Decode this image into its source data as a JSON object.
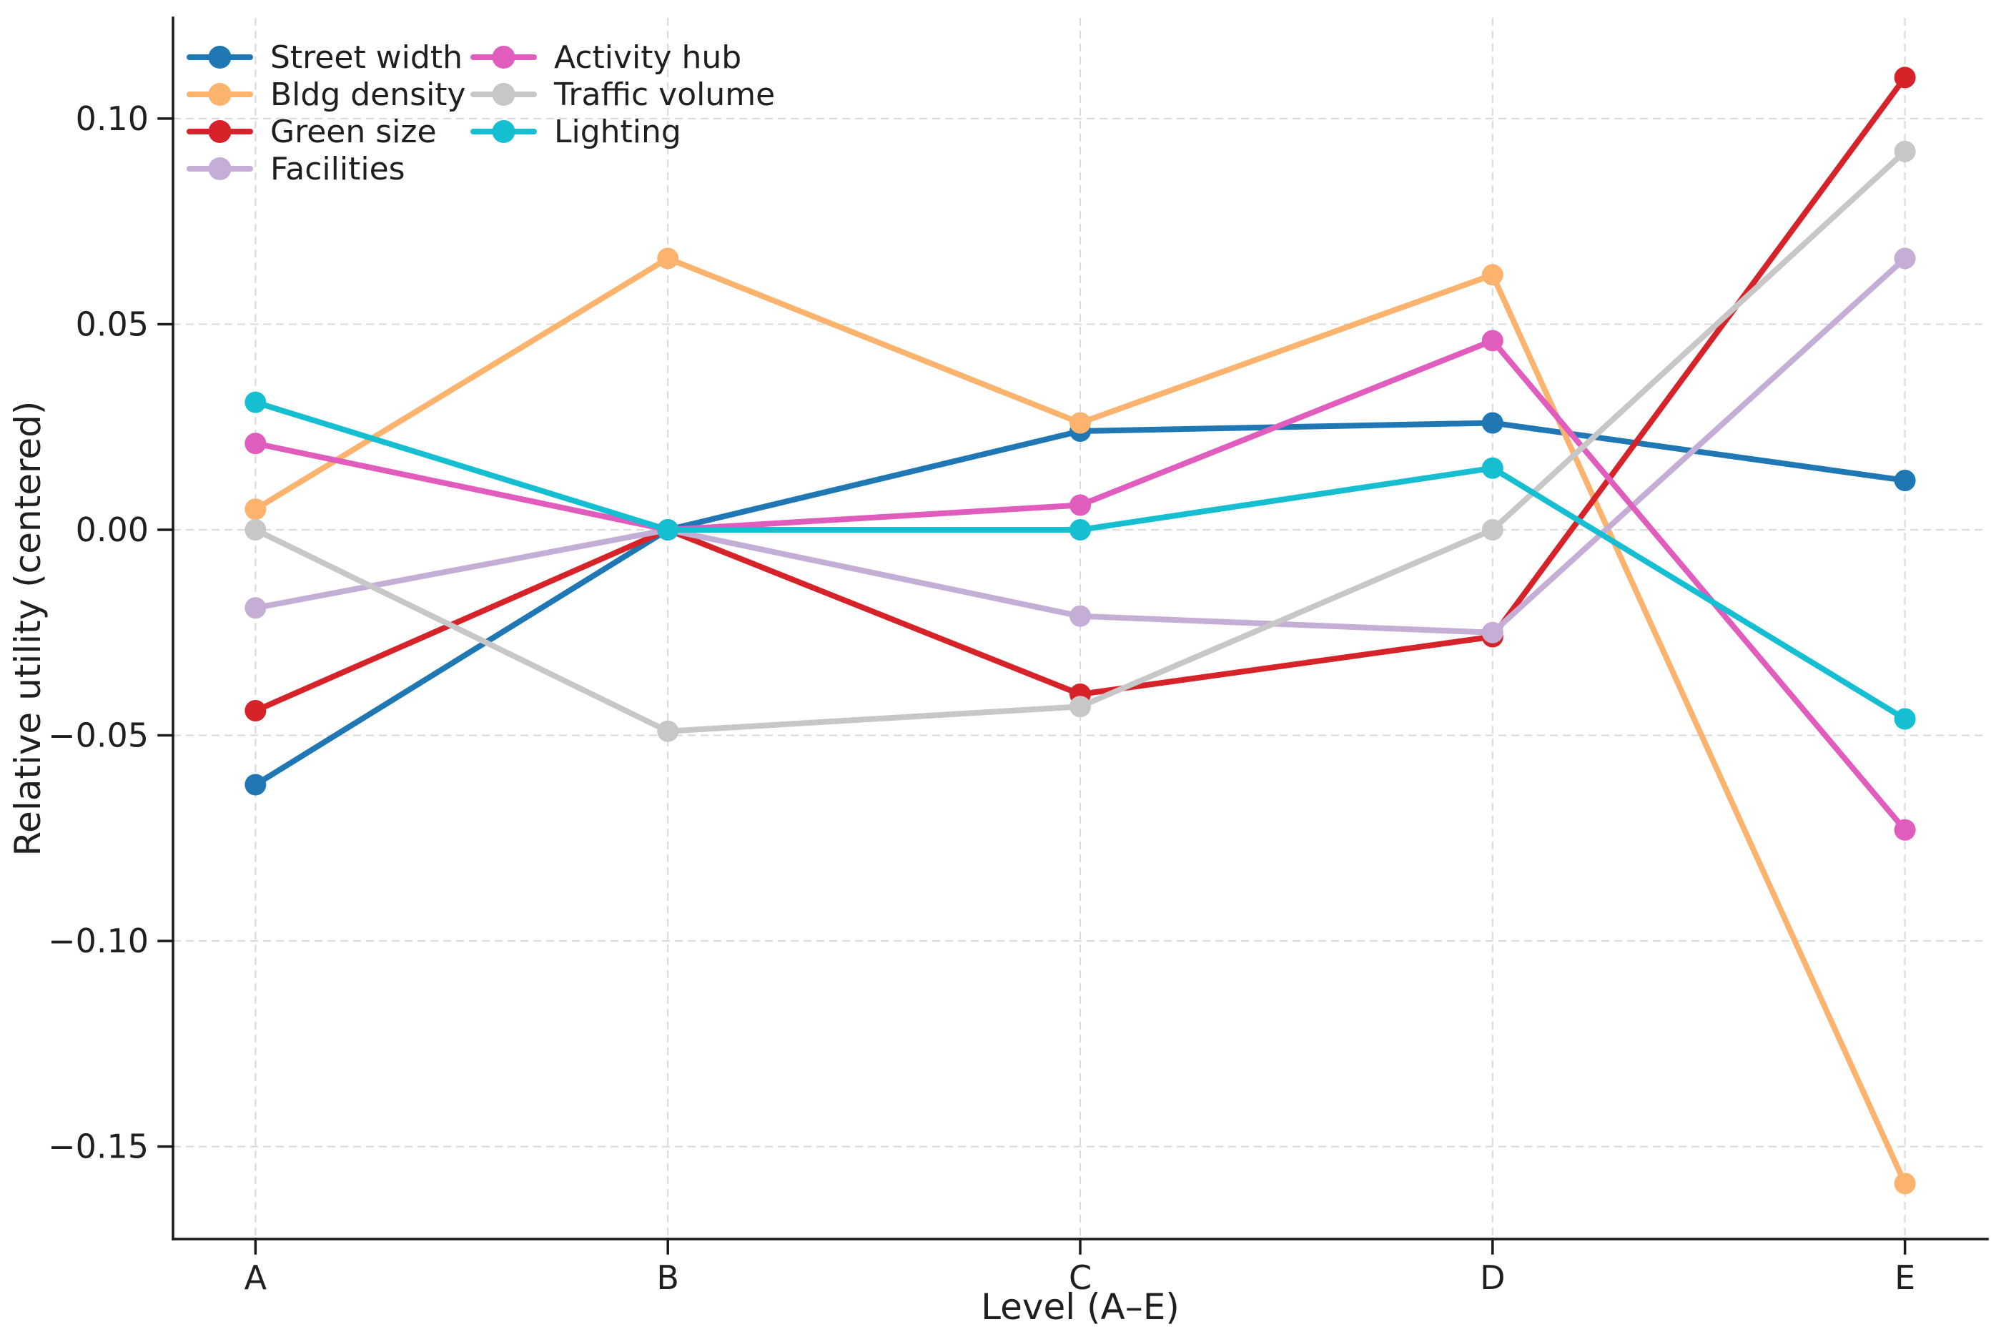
{
  "figure": {
    "background": "#ffffff",
    "grid_color": "#dcdcdc",
    "axis_color": "#1a1a1a",
    "text_color": "#1f1f1f"
  },
  "chart_data": {
    "type": "line",
    "title": "",
    "xlabel": "Level (A–E)",
    "ylabel": "Relative utility (centered)",
    "categories": [
      "A",
      "B",
      "C",
      "D",
      "E"
    ],
    "series": [
      {
        "name": "Street width",
        "color": "#1f77b4",
        "values": [
          -0.062,
          0.0,
          0.024,
          0.026,
          0.012
        ]
      },
      {
        "name": "Bldg density",
        "color": "#fbb36e",
        "values": [
          0.005,
          0.066,
          0.026,
          0.062,
          -0.159
        ]
      },
      {
        "name": "Green size",
        "color": "#d62329",
        "values": [
          -0.044,
          0.0,
          -0.04,
          -0.026,
          0.11
        ]
      },
      {
        "name": "Facilities",
        "color": "#c4aed6",
        "values": [
          -0.019,
          0.0,
          -0.021,
          -0.025,
          0.066
        ]
      },
      {
        "name": "Activity hub",
        "color": "#e05dbe",
        "values": [
          0.021,
          0.0,
          0.006,
          0.046,
          -0.073
        ]
      },
      {
        "name": "Traffic volume",
        "color": "#c7c7c7",
        "values": [
          0.0,
          -0.049,
          -0.043,
          0.0,
          0.092
        ]
      },
      {
        "name": "Lighting",
        "color": "#16bed2",
        "values": [
          0.031,
          0.0,
          0.0,
          0.015,
          -0.046
        ]
      }
    ],
    "yticks": [
      0.1,
      0.05,
      0.0,
      -0.05,
      -0.1,
      -0.15
    ],
    "ytick_labels": [
      "0.10",
      "0.05",
      "0.00",
      "−0.05",
      "−0.10",
      "−0.15"
    ],
    "ylim": [
      -0.1725,
      0.1245
    ],
    "x_margin": 0.2,
    "grid": true,
    "legend_position": "upper-left",
    "legend_columns": 2,
    "legend_rows_first_column": 4
  }
}
